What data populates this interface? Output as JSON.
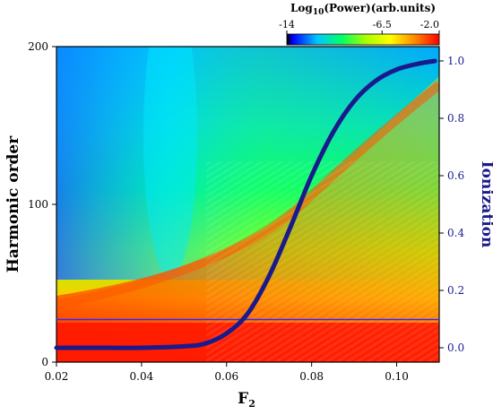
{
  "chart_data": {
    "type": "heatmap",
    "xlabel": "F",
    "xlabel_sub": "2",
    "ylabel": "Harmonic order",
    "y2label": "Ionization",
    "xlim": [
      0.02,
      0.11
    ],
    "ylim": [
      0,
      200
    ],
    "y2lim": [
      -0.05,
      1.05
    ],
    "x_ticks": [
      "0.02",
      "0.04",
      "0.06",
      "0.08",
      "0.10"
    ],
    "y_ticks": [
      "0",
      "100",
      "200"
    ],
    "y2_ticks": [
      "0.0",
      "0.2",
      "0.4",
      "0.6",
      "0.8",
      "1.0"
    ],
    "colorbar": {
      "title_prefix": "Log",
      "title_sub": "10",
      "title_suffix": "(Power)(arb.units)",
      "ticks": [
        "-14",
        "-6.5",
        "-2.0"
      ],
      "range": [
        -14,
        -2.0
      ],
      "colors": [
        "#000000",
        "#0000ff",
        "#00c8ff",
        "#00ff66",
        "#aaff00",
        "#ffff00",
        "#ff8800",
        "#ff0000"
      ]
    },
    "ionization_curve": {
      "x": [
        0.02,
        0.03,
        0.04,
        0.05,
        0.055,
        0.06,
        0.065,
        0.07,
        0.075,
        0.08,
        0.085,
        0.09,
        0.095,
        0.1,
        0.105,
        0.109
      ],
      "y": [
        0.0,
        0.0,
        0.0,
        0.005,
        0.015,
        0.05,
        0.12,
        0.25,
        0.42,
        0.6,
        0.75,
        0.86,
        0.93,
        0.97,
        0.99,
        1.0
      ],
      "color": "#1a1a8c"
    },
    "cutoff_line": {
      "y": 27,
      "color": "#2a2aff"
    }
  }
}
